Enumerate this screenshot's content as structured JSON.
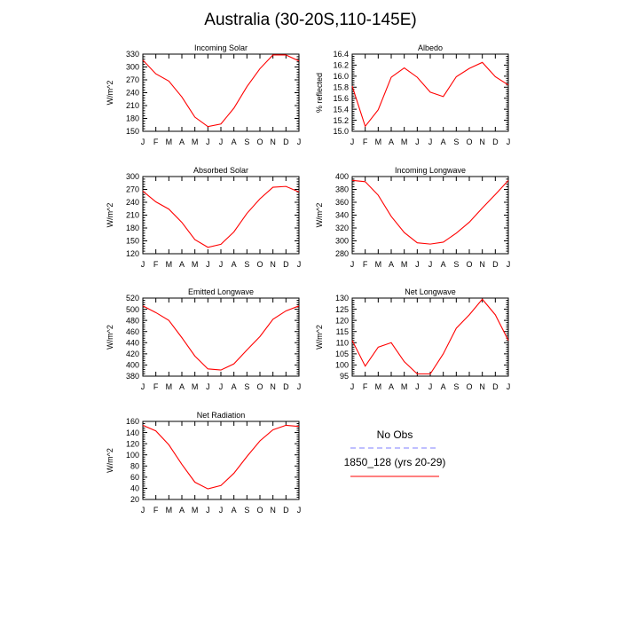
{
  "title": "Australia (30-20S,110-145E)",
  "colors": {
    "model": "#ff0000",
    "obs": "#9999ff",
    "axis": "#000000"
  },
  "legend": {
    "obs_label": "No Obs",
    "model_label": "1850_128 (yrs 20-29)"
  },
  "chart_data": [
    {
      "type": "line",
      "title": "Incoming Solar",
      "xlabel": "",
      "ylabel": "W/m^2",
      "categories": [
        "J",
        "F",
        "M",
        "A",
        "M",
        "J",
        "J",
        "A",
        "S",
        "O",
        "N",
        "D",
        "J"
      ],
      "ylim": [
        150,
        330
      ],
      "yticks": [
        "150",
        "180",
        "210",
        "240",
        "270",
        "300",
        "330"
      ],
      "series": [
        {
          "name": "1850_128 (yrs 20-29)",
          "values": [
            316,
            284,
            267,
            230,
            183,
            161,
            167,
            204,
            254,
            296,
            328,
            328,
            314
          ]
        }
      ]
    },
    {
      "type": "line",
      "title": "Albedo",
      "xlabel": "",
      "ylabel": "% reflected",
      "categories": [
        "J",
        "F",
        "M",
        "A",
        "M",
        "J",
        "J",
        "A",
        "S",
        "O",
        "N",
        "D",
        "J"
      ],
      "ylim": [
        15.0,
        16.4
      ],
      "yticks": [
        "15.0",
        "15.2",
        "15.4",
        "15.6",
        "15.8",
        "16.0",
        "16.2",
        "16.4"
      ],
      "series": [
        {
          "name": "1850_128 (yrs 20-29)",
          "values": [
            15.82,
            15.09,
            15.39,
            15.98,
            16.15,
            15.98,
            15.71,
            15.63,
            15.99,
            16.14,
            16.25,
            15.99,
            15.84
          ]
        }
      ]
    },
    {
      "type": "line",
      "title": "Absorbed Solar",
      "xlabel": "",
      "ylabel": "W/m^2",
      "categories": [
        "J",
        "F",
        "M",
        "A",
        "M",
        "J",
        "J",
        "A",
        "S",
        "O",
        "N",
        "D",
        "J"
      ],
      "ylim": [
        120,
        300
      ],
      "yticks": [
        "120",
        "150",
        "180",
        "210",
        "240",
        "270",
        "300"
      ],
      "series": [
        {
          "name": "1850_128 (yrs 20-29)",
          "values": [
            266,
            241,
            224,
            193,
            153,
            135,
            142,
            171,
            214,
            248,
            275,
            277,
            264
          ]
        }
      ]
    },
    {
      "type": "line",
      "title": "Incoming Longwave",
      "xlabel": "",
      "ylabel": "W/m^2",
      "categories": [
        "J",
        "F",
        "M",
        "A",
        "M",
        "J",
        "J",
        "A",
        "S",
        "O",
        "N",
        "D",
        "J"
      ],
      "ylim": [
        280,
        400
      ],
      "yticks": [
        "280",
        "300",
        "320",
        "340",
        "360",
        "380",
        "400"
      ],
      "series": [
        {
          "name": "1850_128 (yrs 20-29)",
          "values": [
            394,
            392,
            371,
            338,
            313,
            297,
            295,
            298,
            312,
            329,
            351,
            372,
            394
          ]
        }
      ]
    },
    {
      "type": "line",
      "title": "Emitted Longwave",
      "xlabel": "",
      "ylabel": "W/m^2",
      "categories": [
        "J",
        "F",
        "M",
        "A",
        "M",
        "J",
        "J",
        "A",
        "S",
        "O",
        "N",
        "D",
        "J"
      ],
      "ylim": [
        380,
        520
      ],
      "yticks": [
        "380",
        "400",
        "420",
        "440",
        "460",
        "480",
        "500",
        "520"
      ],
      "series": [
        {
          "name": "1850_128 (yrs 20-29)",
          "values": [
            506,
            494,
            480,
            449,
            416,
            393,
            391,
            402,
            427,
            451,
            482,
            497,
            506
          ]
        }
      ]
    },
    {
      "type": "line",
      "title": "Net Longwave",
      "xlabel": "",
      "ylabel": "W/m^2",
      "categories": [
        "J",
        "F",
        "M",
        "A",
        "M",
        "J",
        "J",
        "A",
        "S",
        "O",
        "N",
        "D",
        "J"
      ],
      "ylim": [
        95,
        130
      ],
      "yticks": [
        "95",
        "100",
        "105",
        "110",
        "115",
        "120",
        "125",
        "130"
      ],
      "series": [
        {
          "name": "1850_128 (yrs 20-29)",
          "values": [
            111,
            99.5,
            108,
            110,
            101.5,
            96,
            96,
            105,
            116.5,
            122.5,
            129.5,
            122.5,
            111
          ]
        }
      ]
    },
    {
      "type": "line",
      "title": "Net Radiation",
      "xlabel": "",
      "ylabel": "W/m^2",
      "categories": [
        "J",
        "F",
        "M",
        "A",
        "M",
        "J",
        "J",
        "A",
        "S",
        "O",
        "N",
        "D",
        "J"
      ],
      "ylim": [
        20,
        160
      ],
      "yticks": [
        "20",
        "40",
        "60",
        "80",
        "100",
        "120",
        "140",
        "160"
      ],
      "series": [
        {
          "name": "1850_128 (yrs 20-29)",
          "values": [
            153,
            143,
            118,
            83,
            51,
            39,
            45,
            67,
            97,
            125,
            145,
            153,
            151
          ]
        }
      ]
    }
  ]
}
